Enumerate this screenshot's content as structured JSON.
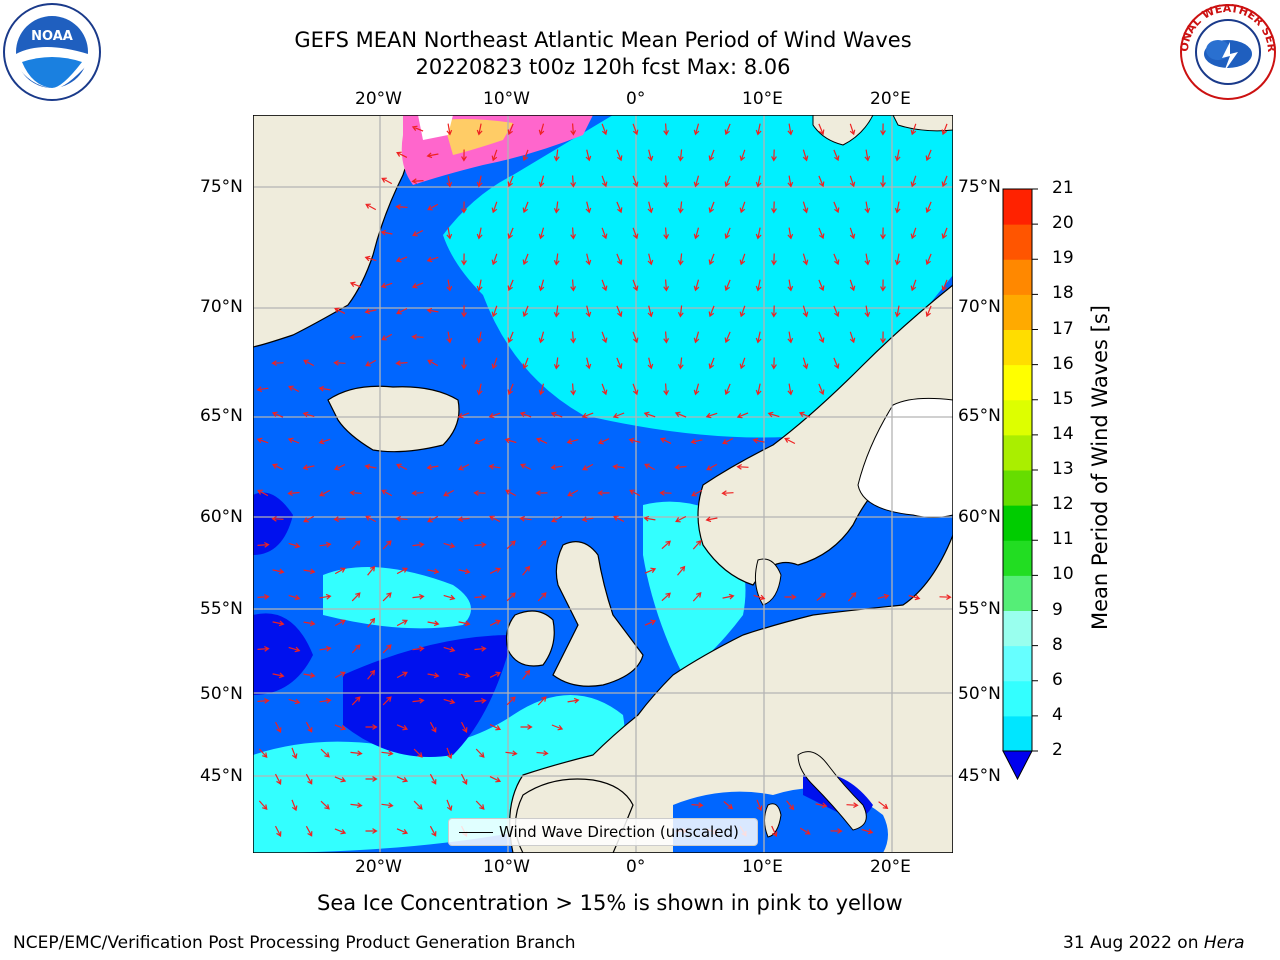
{
  "header": {
    "title_line1": "GEFS MEAN Northeast Atlantic Mean Period of Wind Waves",
    "title_line2": "20220823 t00z 120h fcst   Max: 8.06"
  },
  "logos": {
    "left": {
      "name": "NOAA",
      "text": "NOAA"
    },
    "right": {
      "name": "National Weather Service",
      "text": "NATIONAL WEATHER SERVICE"
    }
  },
  "map": {
    "lon_labels": [
      "20°W",
      "10°W",
      "0°",
      "10°E",
      "20°E"
    ],
    "lat_labels": [
      "75°N",
      "70°N",
      "65°N",
      "60°N",
      "55°N",
      "50°N",
      "45°N"
    ],
    "legend_label": "Wind Wave Direction (unscaled)",
    "colors": {
      "land": "#efecdc",
      "sea_ice": "#ff66cc",
      "coastline": "#000000",
      "arrows": "#ee2222",
      "grid": "#b4b4b4"
    }
  },
  "colorbar": {
    "label": "Mean Period of Wind Waves [s]",
    "ticks": [
      "2",
      "4",
      "6",
      "8",
      "9",
      "10",
      "11",
      "12",
      "13",
      "14",
      "15",
      "16",
      "17",
      "18",
      "19",
      "20",
      "21"
    ],
    "colors": [
      "#0066ff",
      "#00e6ff",
      "#33ffff",
      "#66ffff",
      "#99ffee",
      "#55ee77",
      "#22dd22",
      "#00cc00",
      "#66dd00",
      "#aaee00",
      "#ddff00",
      "#ffff00",
      "#ffdd00",
      "#ffaa00",
      "#ff8800",
      "#ff5500",
      "#ff2200",
      "#ff0000"
    ],
    "extend_color": "#0000ee"
  },
  "caption": "Sea Ice Concentration > 15% is shown in pink to yellow",
  "footer": {
    "left": "NCEP/EMC/Verification Post Processing Product Generation Branch",
    "right_date": "31 Aug 2022 on ",
    "right_host": "Hera"
  }
}
